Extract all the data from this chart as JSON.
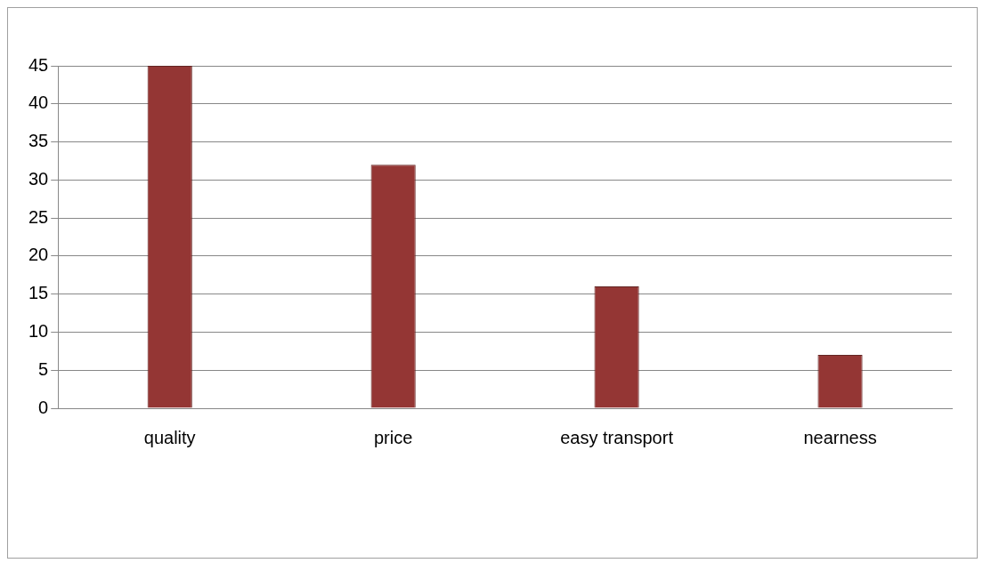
{
  "chart_data": {
    "type": "bar",
    "categories": [
      "quality",
      "price",
      "easy transport",
      "nearness"
    ],
    "values": [
      45,
      32,
      16,
      7
    ],
    "color": "#943634",
    "ylim": [
      0,
      45
    ],
    "yticks": [
      0,
      5,
      10,
      15,
      20,
      25,
      30,
      35,
      40,
      45
    ],
    "grid": "y",
    "legend": false
  }
}
